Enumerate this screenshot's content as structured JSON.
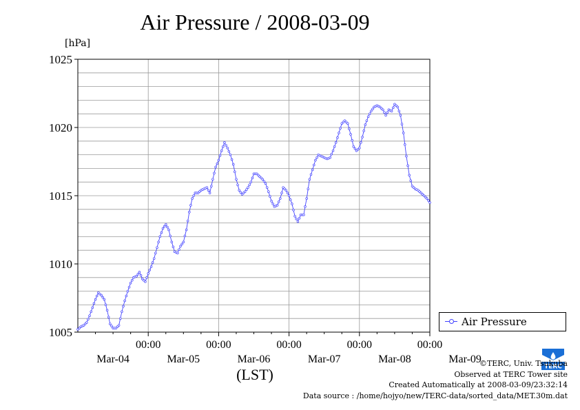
{
  "chart_data": {
    "type": "line",
    "title": "Air Pressure / 2008-03-09",
    "ylabel": "[hPa]",
    "xlabel": "(LST)",
    "ylim": [
      1005,
      1025
    ],
    "yticks": [
      1005,
      1010,
      1015,
      1020,
      1025
    ],
    "grid": true,
    "legend_position": "bottom-right",
    "x_major_ticks": [
      {
        "time": "00:00",
        "date": "Mar-05"
      },
      {
        "time": "00:00",
        "date": "Mar-06"
      },
      {
        "time": "00:00",
        "date": "Mar-07"
      },
      {
        "time": "00:00",
        "date": "Mar-08"
      },
      {
        "time": "00:00",
        "date": "Mar-09"
      }
    ],
    "x_day_labels": [
      "Mar-04",
      "Mar-05",
      "Mar-06",
      "Mar-07",
      "Mar-08",
      "Mar-09"
    ],
    "x_range_hours": [
      -96,
      24
    ],
    "series": [
      {
        "name": "Air Pressure",
        "color": "#4040ff",
        "points": [
          [
            -96,
            1005.2
          ],
          [
            -95,
            1005.4
          ],
          [
            -94,
            1005.5
          ],
          [
            -93,
            1005.7
          ],
          [
            -92,
            1006.2
          ],
          [
            -91,
            1006.8
          ],
          [
            -90,
            1007.4
          ],
          [
            -89,
            1007.9
          ],
          [
            -88,
            1007.7
          ],
          [
            -87,
            1007.4
          ],
          [
            -86,
            1006.6
          ],
          [
            -85,
            1005.6
          ],
          [
            -84,
            1005.3
          ],
          [
            -83,
            1005.3
          ],
          [
            -82,
            1005.5
          ],
          [
            -81,
            1006.5
          ],
          [
            -80,
            1007.3
          ],
          [
            -79,
            1008.0
          ],
          [
            -78,
            1008.6
          ],
          [
            -77,
            1009.0
          ],
          [
            -76,
            1009.1
          ],
          [
            -75,
            1009.4
          ],
          [
            -74,
            1008.9
          ],
          [
            -73,
            1008.7
          ],
          [
            -72,
            1009.3
          ],
          [
            -71,
            1009.8
          ],
          [
            -70,
            1010.4
          ],
          [
            -69,
            1011.2
          ],
          [
            -68,
            1012.0
          ],
          [
            -67,
            1012.6
          ],
          [
            -66,
            1012.9
          ],
          [
            -65,
            1012.5
          ],
          [
            -64,
            1011.6
          ],
          [
            -63,
            1010.9
          ],
          [
            -62,
            1010.8
          ],
          [
            -61,
            1011.3
          ],
          [
            -60,
            1011.6
          ],
          [
            -59,
            1012.5
          ],
          [
            -58,
            1013.8
          ],
          [
            -57,
            1014.8
          ],
          [
            -56,
            1015.2
          ],
          [
            -55,
            1015.2
          ],
          [
            -54,
            1015.4
          ],
          [
            -53,
            1015.5
          ],
          [
            -52,
            1015.6
          ],
          [
            -51,
            1015.2
          ],
          [
            -50,
            1016.2
          ],
          [
            -49,
            1017.1
          ],
          [
            -48,
            1017.6
          ],
          [
            -47,
            1018.3
          ],
          [
            -46,
            1018.9
          ],
          [
            -45,
            1018.5
          ],
          [
            -44,
            1018.0
          ],
          [
            -43,
            1017.3
          ],
          [
            -42,
            1016.2
          ],
          [
            -41,
            1015.4
          ],
          [
            -40,
            1015.1
          ],
          [
            -39,
            1015.3
          ],
          [
            -38,
            1015.6
          ],
          [
            -37,
            1016.0
          ],
          [
            -36,
            1016.6
          ],
          [
            -35,
            1016.6
          ],
          [
            -34,
            1016.4
          ],
          [
            -33,
            1016.2
          ],
          [
            -32,
            1015.9
          ],
          [
            -31,
            1015.3
          ],
          [
            -30,
            1014.6
          ],
          [
            -29,
            1014.2
          ],
          [
            -28,
            1014.3
          ],
          [
            -27,
            1014.8
          ],
          [
            -26,
            1015.6
          ],
          [
            -25,
            1015.4
          ],
          [
            -24,
            1015.0
          ],
          [
            -23,
            1014.4
          ],
          [
            -22,
            1013.5
          ],
          [
            -21,
            1013.1
          ],
          [
            -20,
            1013.6
          ],
          [
            -19,
            1013.6
          ],
          [
            -18,
            1014.8
          ],
          [
            -17,
            1016.2
          ],
          [
            -16,
            1016.9
          ],
          [
            -15,
            1017.6
          ],
          [
            -14,
            1018.0
          ],
          [
            -13,
            1017.9
          ],
          [
            -12,
            1017.8
          ],
          [
            -11,
            1017.7
          ],
          [
            -10,
            1017.8
          ],
          [
            -9,
            1018.3
          ],
          [
            -8,
            1018.9
          ],
          [
            -7,
            1019.6
          ],
          [
            -6,
            1020.3
          ],
          [
            -5,
            1020.5
          ],
          [
            -4,
            1020.3
          ],
          [
            -3,
            1019.5
          ],
          [
            -2,
            1018.6
          ],
          [
            -1,
            1018.3
          ],
          [
            0,
            1018.5
          ],
          [
            1,
            1019.3
          ],
          [
            2,
            1020.2
          ],
          [
            3,
            1020.8
          ],
          [
            4,
            1021.2
          ],
          [
            5,
            1021.5
          ],
          [
            6,
            1021.6
          ],
          [
            7,
            1021.5
          ],
          [
            8,
            1021.3
          ],
          [
            9,
            1020.9
          ],
          [
            10,
            1021.3
          ],
          [
            11,
            1021.2
          ],
          [
            12,
            1021.7
          ],
          [
            13,
            1021.5
          ],
          [
            14,
            1020.9
          ],
          [
            15,
            1019.6
          ],
          [
            16,
            1017.9
          ],
          [
            17,
            1016.5
          ],
          [
            18,
            1015.7
          ],
          [
            19,
            1015.5
          ],
          [
            20,
            1015.4
          ],
          [
            21,
            1015.2
          ],
          [
            22,
            1015.0
          ],
          [
            23,
            1014.8
          ],
          [
            24,
            1014.5
          ]
        ]
      }
    ]
  },
  "legend": {
    "label": "Air Pressure"
  },
  "credits": {
    "copyright": "©TERC, Univ. Tsukuba",
    "observed": "Observed at TERC Tower site",
    "created": "Created Automatically at 2008-03-09/23:32:14",
    "source": "Data source : /home/hojyo/new/TERC-data/sorted_data/MET.30m.dat"
  },
  "logo": {
    "text": "TERC",
    "color": "#1a6fd6"
  }
}
